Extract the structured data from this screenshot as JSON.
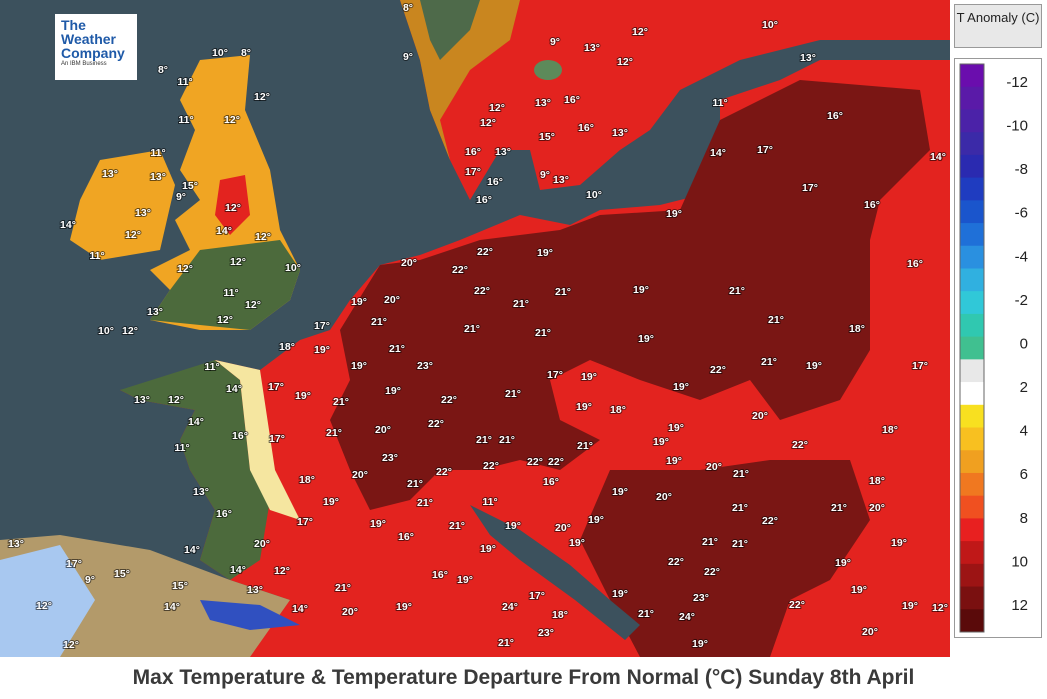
{
  "logo": {
    "line1": "The",
    "line2": "Weather",
    "line3": "Company",
    "tagline": "An IBM Business"
  },
  "legend": {
    "title": "T Anomaly (C)",
    "labels": [
      -12,
      -10,
      -8,
      -6,
      -4,
      -2,
      0,
      2,
      4,
      6,
      8,
      10,
      12
    ],
    "colors": [
      "#6a0dad",
      "#5a1aa8",
      "#4b22a8",
      "#3b2aa8",
      "#2a2ab0",
      "#1f3cc0",
      "#1a55cc",
      "#1f70d8",
      "#2a90e0",
      "#30b0e0",
      "#30c8d8",
      "#30c8b0",
      "#40c090",
      "#e8e8e8",
      "#ffffff",
      "#f8e020",
      "#f8c020",
      "#f0a020",
      "#f07820",
      "#f05020",
      "#e82020",
      "#c01818",
      "#9c1414",
      "#7a1010",
      "#5a0a0a"
    ]
  },
  "map": {
    "labels": [
      "8°",
      "9°",
      "9°",
      "13°",
      "12°",
      "12°",
      "10°",
      "13°",
      "13°",
      "16°",
      "12°",
      "12°",
      "16°",
      "15°",
      "13°",
      "11°",
      "16°",
      "14°",
      "17°",
      "14°",
      "17°",
      "16°",
      "16°",
      "13°",
      "17°",
      "16°",
      "9°",
      "13°",
      "10°",
      "16°",
      "19°",
      "8°",
      "10°",
      "8°",
      "11°",
      "12°",
      "11°",
      "12°",
      "11°",
      "13°",
      "13°",
      "15°",
      "9°",
      "12°",
      "13°",
      "14°",
      "14°",
      "12°",
      "12°",
      "11°",
      "12°",
      "10°",
      "12°",
      "11°",
      "12°",
      "13°",
      "10°",
      "12°",
      "12°",
      "22°",
      "19°",
      "20°",
      "22°",
      "22°",
      "21°",
      "21°",
      "19°",
      "21°",
      "19°",
      "20°",
      "16°",
      "21°",
      "21°",
      "21°",
      "19°",
      "21°",
      "18°",
      "17°",
      "18°",
      "19°",
      "21°",
      "19°",
      "23°",
      "21°",
      "17°",
      "19°",
      "22°",
      "21°",
      "19°",
      "17°",
      "11°",
      "14°",
      "17°",
      "19°",
      "19°",
      "22°",
      "19°",
      "13°",
      "12°",
      "21°",
      "14°",
      "16°",
      "17°",
      "21°",
      "20°",
      "22°",
      "19°",
      "18°",
      "20°",
      "19°",
      "18°",
      "21°",
      "21°",
      "21°",
      "19°",
      "22°",
      "11°",
      "19°",
      "20°",
      "21°",
      "18°",
      "18°",
      "23°",
      "20°",
      "21°",
      "22°",
      "22°",
      "22°",
      "22°",
      "16°",
      "19°",
      "20°",
      "13°",
      "19°",
      "21°",
      "11°",
      "16°",
      "17°",
      "19°",
      "21°",
      "19°",
      "20°",
      "19°",
      "21°",
      "22°",
      "21°",
      "20°",
      "20°",
      "16°",
      "19°",
      "19°",
      "21°",
      "21°",
      "19°",
      "14°",
      "22°",
      "22°",
      "19°",
      "13°",
      "17°",
      "9°",
      "15°",
      "12°",
      "14°",
      "16°",
      "19°",
      "13°",
      "21°",
      "15°",
      "12°",
      "14°",
      "14°",
      "20°",
      "19°",
      "24°",
      "17°",
      "19°",
      "23°",
      "22°",
      "19°",
      "19°",
      "12°",
      "21°",
      "18°",
      "23°",
      "24°",
      "20°",
      "12°",
      "21°",
      "19°"
    ]
  },
  "caption": "Max Temperature & Temperature Departure From Normal (°C) Sunday 8th April"
}
